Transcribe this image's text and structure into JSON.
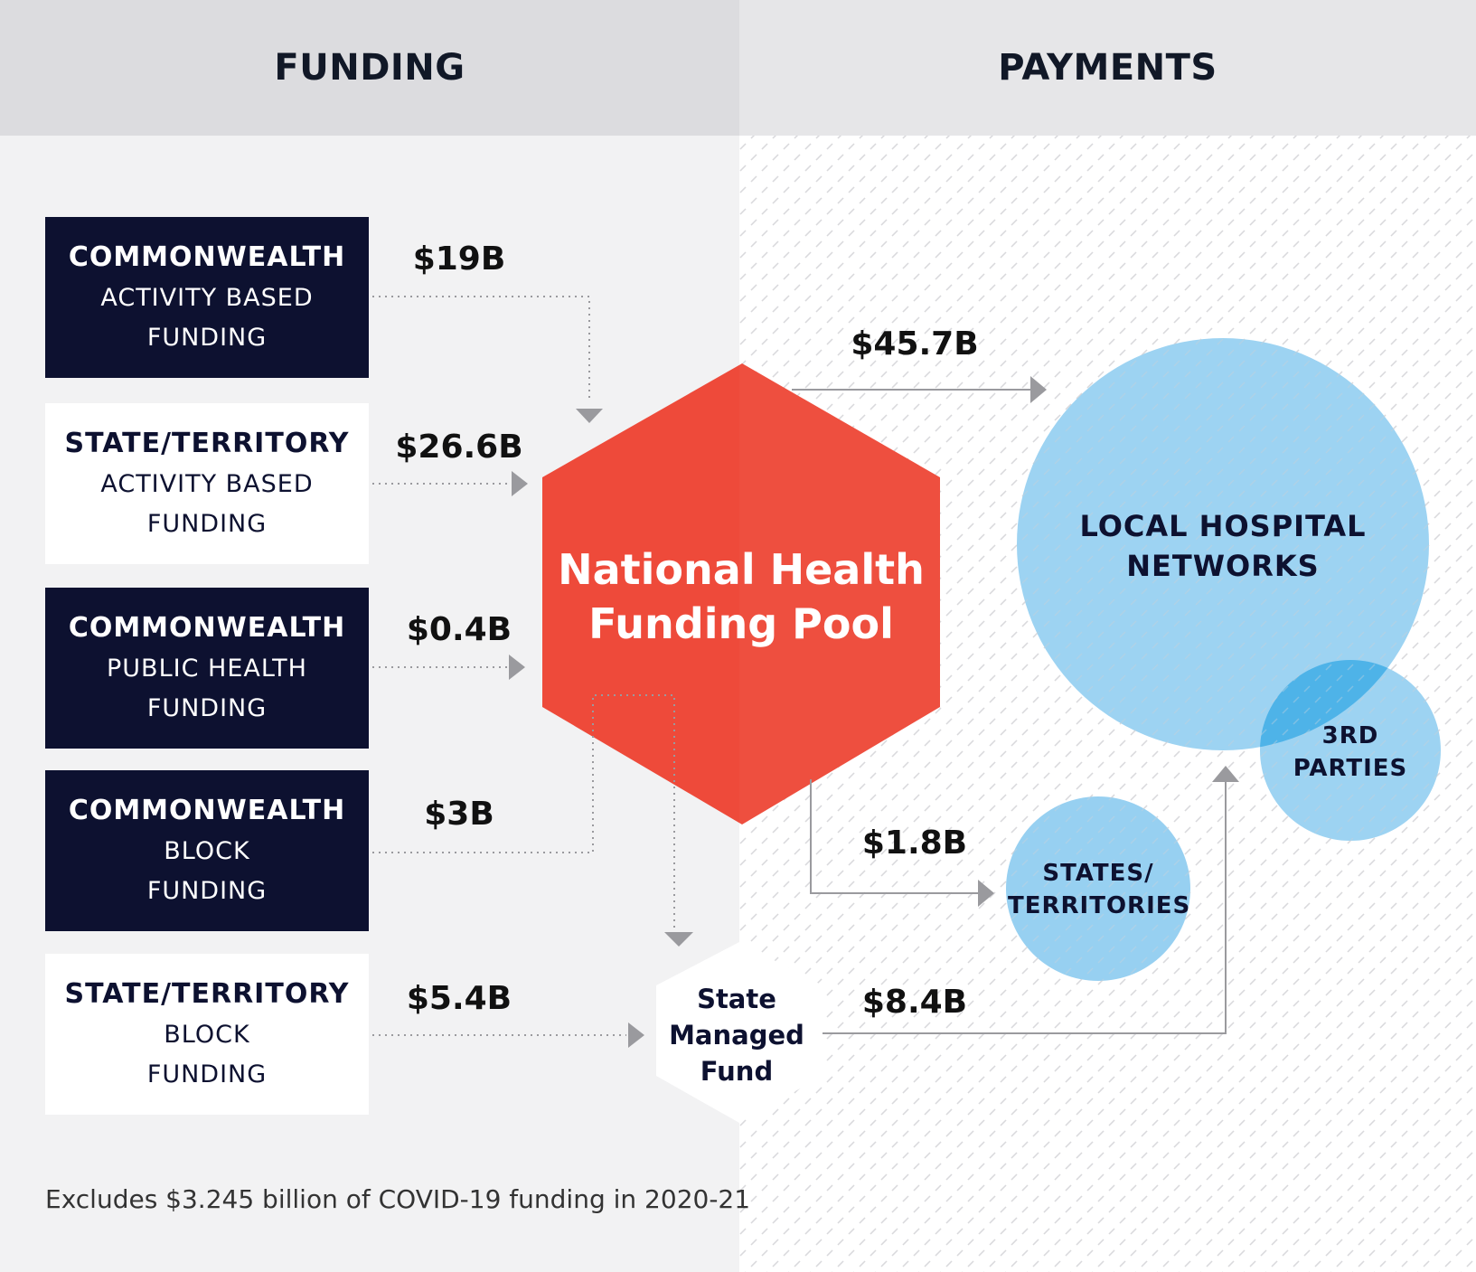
{
  "headers": {
    "funding": "FUNDING",
    "payments": "PAYMENTS"
  },
  "sources": [
    {
      "title": "COMMONWEALTH",
      "line2": "ACTIVITY BASED",
      "line3": "FUNDING",
      "amount": "$19B",
      "style": "dark"
    },
    {
      "title": "STATE/TERRITORY",
      "line2": "ACTIVITY BASED",
      "line3": "FUNDING",
      "amount": "$26.6B",
      "style": "light"
    },
    {
      "title": "COMMONWEALTH",
      "line2": "PUBLIC HEALTH",
      "line3": "FUNDING",
      "amount": "$0.4B",
      "style": "dark"
    },
    {
      "title": "COMMONWEALTH",
      "line2": "BLOCK",
      "line3": "FUNDING",
      "amount": "$3B",
      "style": "dark"
    },
    {
      "title": "STATE/TERRITORY",
      "line2": "BLOCK",
      "line3": "FUNDING",
      "amount": "$5.4B",
      "style": "light"
    }
  ],
  "pool": {
    "line1": "National Health",
    "line2": "Funding Pool"
  },
  "state_managed_fund": {
    "line1": "State",
    "line2": "Managed",
    "line3": "Fund"
  },
  "payments": {
    "to_lhn_from_pool": "$45.7B",
    "to_states_from_pool": "$1.8B",
    "to_lhn_from_smf": "$8.4B"
  },
  "recipients": {
    "lhn": {
      "line1": "LOCAL HOSPITAL",
      "line2": "NETWORKS"
    },
    "third_parties": {
      "line1": "3RD",
      "line2": "PARTIES"
    },
    "states": {
      "line1": "STATES/",
      "line2": "TERRITORIES"
    }
  },
  "footnote": "Excludes $3.245 billion of COVID-19 funding in 2020-21",
  "colors": {
    "navy": "#0d1130",
    "pool_red": "#ee4a3a",
    "circle_blue": "#8ccbf0",
    "overlap_blue": "#4eb3e8",
    "header_gray": "#e4e4e6",
    "panel_gray": "#f2f2f3",
    "arrow_gray": "#9a9a9e"
  }
}
